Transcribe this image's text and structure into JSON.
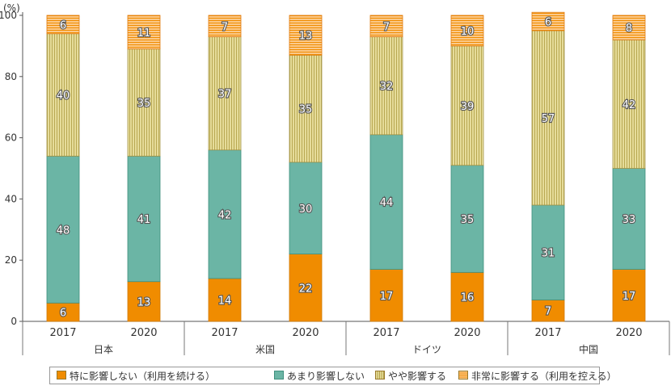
{
  "chart_data": {
    "type": "bar",
    "stacked": true,
    "unit_label": "(%)",
    "ylim": [
      0,
      100
    ],
    "yticks": [
      0,
      20,
      40,
      60,
      80,
      100
    ],
    "groups": [
      {
        "label": "日本",
        "years": [
          "2017",
          "2020"
        ]
      },
      {
        "label": "米国",
        "years": [
          "2017",
          "2020"
        ]
      },
      {
        "label": "ドイツ",
        "years": [
          "2017",
          "2020"
        ]
      },
      {
        "label": "中国",
        "years": [
          "2017",
          "2020"
        ]
      }
    ],
    "categories": [
      "日本 2017",
      "日本 2020",
      "米国 2017",
      "米国 2020",
      "ドイツ 2017",
      "ドイツ 2020",
      "中国 2017",
      "中国 2020"
    ],
    "series": [
      {
        "name": "特に影響しない（利用を続ける）",
        "color": "#f08c00",
        "pattern": "solid",
        "values": [
          6,
          13,
          14,
          22,
          17,
          16,
          7,
          17
        ]
      },
      {
        "name": "あまり影響しない",
        "color": "#6bb5a5",
        "pattern": "solid",
        "values": [
          48,
          41,
          42,
          30,
          44,
          35,
          31,
          33
        ]
      },
      {
        "name": "やや影響する",
        "color": "#d8cf86",
        "pattern": "vertical-lines",
        "values": [
          40,
          35,
          37,
          35,
          32,
          39,
          57,
          42
        ]
      },
      {
        "name": "非常に影響する（利用を控える）",
        "color": "#f5a347",
        "pattern": "horizontal-lines",
        "values": [
          6,
          11,
          7,
          13,
          7,
          10,
          6,
          8
        ]
      }
    ],
    "grid": false,
    "legend_position": "bottom"
  }
}
